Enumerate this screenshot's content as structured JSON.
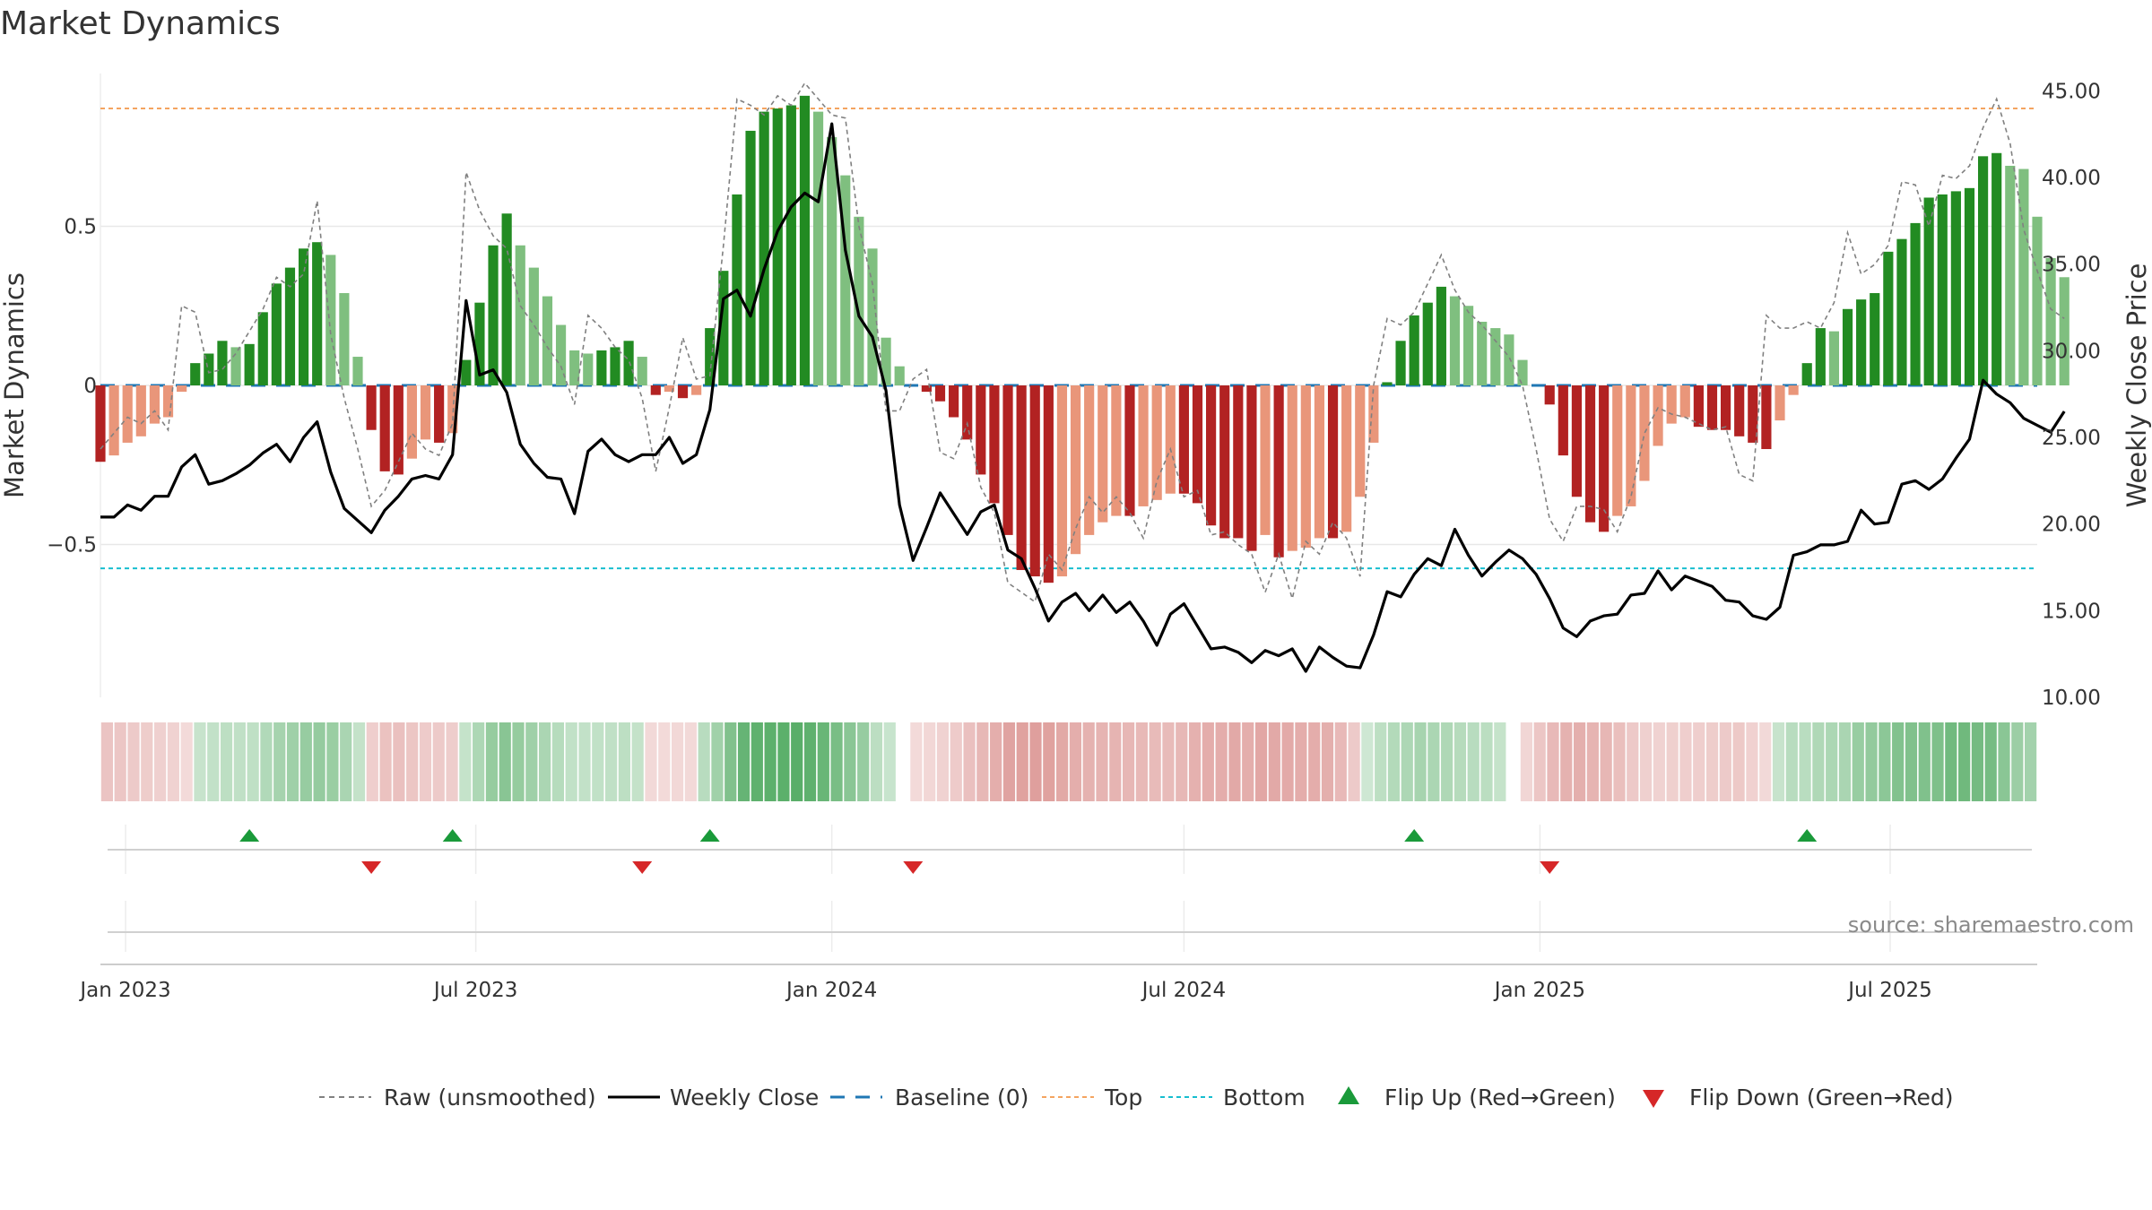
{
  "chart_data": {
    "type": "bar",
    "title": "Market Dynamics",
    "ylabel_left": "Market Dynamics",
    "ylabel_right": "Weekly Close Price",
    "left_ylim": [
      -0.98,
      0.98
    ],
    "left_ticks": [
      0.5,
      0,
      -0.5
    ],
    "left_tick_labels": [
      "0.5",
      "0",
      "−0.5"
    ],
    "right_ylim": [
      10.0,
      46.0
    ],
    "right_ticks": [
      45,
      40,
      35,
      30,
      25,
      20,
      15,
      10
    ],
    "right_tick_labels": [
      "45.00",
      "40.00",
      "35.00",
      "30.00",
      "25.00",
      "20.00",
      "15.00",
      "10.00"
    ],
    "top_level": 0.87,
    "bottom_level": -0.575,
    "baseline": 0,
    "x_range": [
      "2022-12-19",
      "2025-09-15"
    ],
    "x_ticks": [
      {
        "label": "Jan 2023",
        "date": "2023-01-01"
      },
      {
        "label": "Jul 2023",
        "date": "2023-07-01"
      },
      {
        "label": "Jan 2024",
        "date": "2024-01-01"
      },
      {
        "label": "Jul 2024",
        "date": "2024-07-01"
      },
      {
        "label": "Jan 2025",
        "date": "2025-01-01"
      },
      {
        "label": "Jul 2025",
        "date": "2025-07-01"
      }
    ],
    "start_date": "2022-12-19",
    "week_step_days": 7,
    "momentum": [
      -0.24,
      -0.22,
      -0.18,
      -0.16,
      -0.12,
      -0.1,
      -0.02,
      0.07,
      0.1,
      0.14,
      0.12,
      0.13,
      0.23,
      0.32,
      0.37,
      0.43,
      0.45,
      0.41,
      0.29,
      0.09,
      -0.14,
      -0.27,
      -0.28,
      -0.23,
      -0.17,
      -0.18,
      -0.15,
      0.08,
      0.26,
      0.44,
      0.54,
      0.44,
      0.37,
      0.28,
      0.19,
      0.11,
      0.1,
      0.11,
      0.12,
      0.14,
      0.09,
      -0.03,
      -0.02,
      -0.04,
      -0.03,
      0.18,
      0.36,
      0.6,
      0.8,
      0.86,
      0.87,
      0.88,
      0.91,
      0.86,
      0.78,
      0.66,
      0.53,
      0.43,
      0.15,
      0.06,
      0.0,
      -0.02,
      -0.05,
      -0.1,
      -0.17,
      -0.28,
      -0.37,
      -0.47,
      -0.58,
      -0.6,
      -0.62,
      -0.6,
      -0.53,
      -0.47,
      -0.43,
      -0.41,
      -0.41,
      -0.38,
      -0.36,
      -0.34,
      -0.34,
      -0.37,
      -0.44,
      -0.48,
      -0.48,
      -0.52,
      -0.47,
      -0.54,
      -0.52,
      -0.51,
      -0.48,
      -0.48,
      -0.46,
      -0.35,
      -0.18,
      0.01,
      0.14,
      0.22,
      0.26,
      0.31,
      0.28,
      0.25,
      0.2,
      0.18,
      0.16,
      0.08,
      0.0,
      -0.06,
      -0.22,
      -0.35,
      -0.43,
      -0.46,
      -0.41,
      -0.38,
      -0.3,
      -0.19,
      -0.12,
      -0.1,
      -0.13,
      -0.14,
      -0.14,
      -0.16,
      -0.18,
      -0.2,
      -0.11,
      -0.03,
      0.07,
      0.18,
      0.17,
      0.24,
      0.27,
      0.29,
      0.42,
      0.46,
      0.51,
      0.59,
      0.6,
      0.61,
      0.62,
      0.72,
      0.73,
      0.69,
      0.68,
      0.53,
      0.4,
      0.34
    ],
    "close": [
      20.4,
      20.4,
      21.1,
      20.8,
      21.6,
      21.6,
      23.3,
      24.0,
      22.3,
      22.5,
      22.9,
      23.4,
      24.1,
      24.6,
      23.6,
      25.0,
      25.9,
      23.0,
      20.9,
      20.2,
      19.5,
      20.8,
      21.6,
      22.6,
      22.8,
      22.6,
      24.0,
      32.9,
      28.6,
      28.9,
      27.6,
      24.6,
      23.5,
      22.7,
      22.6,
      20.6,
      24.2,
      24.9,
      24.0,
      23.6,
      24.0,
      24.0,
      25.0,
      23.5,
      24.0,
      26.6,
      33.0,
      33.5,
      32.0,
      34.7,
      36.9,
      38.3,
      39.1,
      38.6,
      43.1,
      35.8,
      32.0,
      30.8,
      27.7,
      21.1,
      17.9,
      19.8,
      21.8,
      20.6,
      19.4,
      20.7,
      21.1,
      18.5,
      18.0,
      16.3,
      14.4,
      15.5,
      16.0,
      15.0,
      15.9,
      14.9,
      15.5,
      14.4,
      13.0,
      14.8,
      15.4,
      14.1,
      12.8,
      12.9,
      12.6,
      12.0,
      12.7,
      12.4,
      12.8,
      11.5,
      12.9,
      12.3,
      11.8,
      11.7,
      13.6,
      16.1,
      15.8,
      17.1,
      18.0,
      17.6,
      19.7,
      18.2,
      17.0,
      17.8,
      18.5,
      18.0,
      17.1,
      15.7,
      14.0,
      13.5,
      14.4,
      14.7,
      14.8,
      15.9,
      16.0,
      17.3,
      16.2,
      17.0,
      16.7,
      16.4,
      15.6,
      15.5,
      14.7,
      14.5,
      15.2,
      18.2,
      18.4,
      18.8,
      18.8,
      19.0,
      20.8,
      20.0,
      20.1,
      22.3,
      22.5,
      22.0,
      22.6,
      23.8,
      24.9,
      28.3,
      27.5,
      27.0,
      26.1,
      25.7,
      25.3,
      26.5
    ],
    "raw": [
      -0.2,
      -0.15,
      -0.1,
      -0.12,
      -0.08,
      -0.14,
      0.25,
      0.23,
      0.04,
      0.05,
      0.1,
      0.17,
      0.24,
      0.34,
      0.31,
      0.35,
      0.58,
      0.16,
      -0.04,
      -0.2,
      -0.38,
      -0.33,
      -0.24,
      -0.15,
      -0.2,
      -0.22,
      -0.12,
      0.67,
      0.55,
      0.47,
      0.43,
      0.25,
      0.19,
      0.12,
      0.06,
      -0.06,
      0.22,
      0.18,
      0.12,
      0.08,
      -0.04,
      -0.27,
      -0.07,
      0.15,
      0.02,
      0.03,
      0.44,
      0.9,
      0.88,
      0.85,
      0.91,
      0.88,
      0.95,
      0.9,
      0.85,
      0.84,
      0.5,
      0.32,
      -0.08,
      -0.08,
      0.02,
      0.05,
      -0.21,
      -0.23,
      -0.12,
      -0.32,
      -0.4,
      -0.62,
      -0.65,
      -0.68,
      -0.53,
      -0.58,
      -0.45,
      -0.35,
      -0.4,
      -0.35,
      -0.4,
      -0.48,
      -0.3,
      -0.2,
      -0.35,
      -0.33,
      -0.47,
      -0.46,
      -0.5,
      -0.53,
      -0.65,
      -0.53,
      -0.67,
      -0.49,
      -0.53,
      -0.43,
      -0.48,
      -0.6,
      0.0,
      0.21,
      0.19,
      0.23,
      0.32,
      0.41,
      0.3,
      0.23,
      0.19,
      0.14,
      0.09,
      0.0,
      -0.2,
      -0.42,
      -0.49,
      -0.38,
      -0.38,
      -0.39,
      -0.46,
      -0.35,
      -0.15,
      -0.07,
      -0.09,
      -0.1,
      -0.12,
      -0.14,
      -0.13,
      -0.28,
      -0.3,
      0.22,
      0.18,
      0.18,
      0.2,
      0.18,
      0.26,
      0.48,
      0.35,
      0.38,
      0.44,
      0.64,
      0.63,
      0.5,
      0.66,
      0.65,
      0.69,
      0.81,
      0.9,
      0.76,
      0.49,
      0.36,
      0.24,
      0.21
    ],
    "flip_up": [
      "2023-03-06",
      "2023-06-19",
      "2023-10-30",
      "2024-10-28",
      "2025-05-19"
    ],
    "flip_down": [
      "2023-05-08",
      "2023-09-25",
      "2024-02-12",
      "2025-01-06"
    ],
    "legend": [
      "Raw (unsmoothed)",
      "Weekly Close",
      "Baseline (0)",
      "Top",
      "Bottom",
      "Flip Up (Red→Green)",
      "Flip Down (Green→Red)"
    ],
    "colors": {
      "strong_up": "#228b22",
      "weak_up": "#7fbf7f",
      "strong_down": "#b22222",
      "weak_down": "#e9967a",
      "close_line": "#000000",
      "raw_line": "#808080",
      "baseline": "#1f77b4",
      "top": "#f4a460",
      "bottom": "#17becf",
      "flip_up": "#1a9a3a",
      "flip_down": "#d62728",
      "grid": "#e8e8e8"
    },
    "source": "source: sharemaestro.com"
  }
}
